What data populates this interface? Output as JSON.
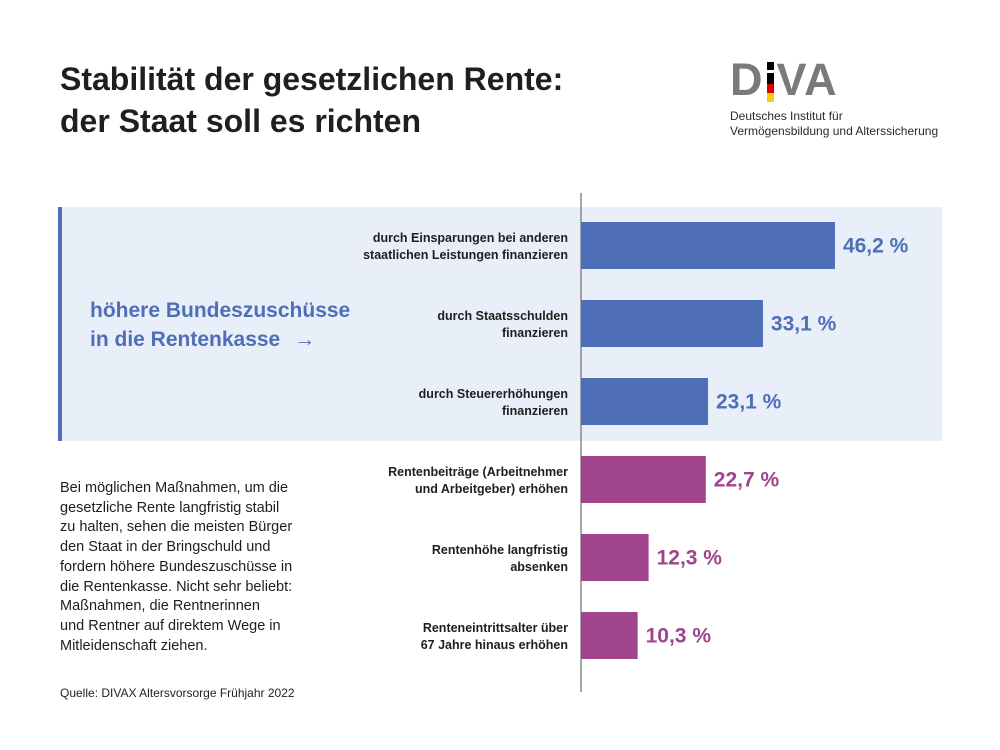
{
  "title_lines": [
    "Stabilität der gesetzlichen Rente:",
    "der Staat soll es richten"
  ],
  "logo": {
    "mark": "DIVA",
    "subtitle_lines": [
      "Deutsches Institut für",
      "Vermögensbildung und Alterssicherung"
    ]
  },
  "callout": {
    "lines": [
      "höhere Bundeszuschüsse",
      "in die Rentenkasse"
    ],
    "arrow": "→"
  },
  "description_lines": [
    "Bei möglichen Maßnahmen, um die",
    "gesetzliche Rente langfristig stabil",
    "zu halten, sehen die meisten Bürger",
    "den Staat in der Bringschuld und",
    "fordern höhere Bundeszuschüsse in",
    "die Rentenkasse. Nicht sehr beliebt:",
    "Maßnahmen, die Rentnerinnen",
    "und Rentner auf direktem Wege in",
    "Mitleidenschaft ziehen."
  ],
  "source": "Quelle: DIVAX Altersvorsorge Frühjahr 2022",
  "colors": {
    "group_blue": "#4e6fb8",
    "group_purple": "#a0448e",
    "panel_bg": "#e9eff8",
    "logo_gray": "#7a7a7a",
    "flag_black": "#000000",
    "flag_red": "#dd0000",
    "flag_gold": "#ffce00"
  },
  "chart_data": {
    "type": "bar",
    "orientation": "horizontal",
    "categories": [
      [
        "durch Einsparungen bei anderen",
        "staatlichen Leistungen finanzieren"
      ],
      [
        "durch Staatsschulden",
        "finanzieren"
      ],
      [
        "durch Steuererhöhungen",
        "finanzieren"
      ],
      [
        "Rentenbeiträge (Arbeitnehmer",
        "und Arbeitgeber) erhöhen"
      ],
      [
        "Rentenhöhe langfristig",
        "absenken"
      ],
      [
        "Renteneintrittsalter über",
        "67 Jahre hinaus erhöhen"
      ]
    ],
    "values": [
      46.2,
      33.1,
      23.1,
      22.7,
      12.3,
      10.3
    ],
    "value_labels": [
      "46,2 %",
      "33,1 %",
      "23,1 %",
      "22,7 %",
      "12,3 %",
      "10,3 %"
    ],
    "groups": [
      "blue",
      "blue",
      "blue",
      "purple",
      "purple",
      "purple"
    ],
    "xlim": [
      0,
      50
    ],
    "grid": false,
    "legend": "none"
  }
}
